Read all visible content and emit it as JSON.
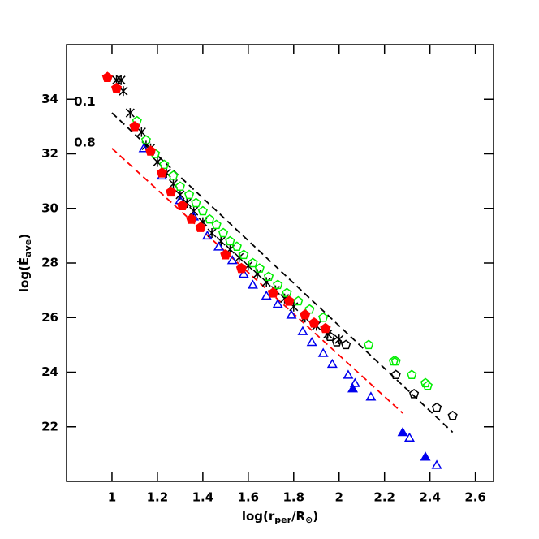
{
  "chart_data": {
    "type": "scatter",
    "x_label": [
      "log(r",
      "per",
      "/R",
      "⊙",
      ")"
    ],
    "y_label": [
      "log(Ė",
      "ave",
      ")"
    ],
    "xlim": [
      0.8,
      2.68
    ],
    "ylim": [
      20,
      36
    ],
    "xticks": [
      1,
      1.2,
      1.4,
      1.6,
      1.8,
      2,
      2.2,
      2.4,
      2.6
    ],
    "yticks": [
      22,
      24,
      26,
      28,
      30,
      32,
      34
    ],
    "annotations": [
      {
        "text": "0.1",
        "x": 0.88,
        "y": 33.9
      },
      {
        "text": "0.8",
        "x": 0.88,
        "y": 32.4
      }
    ],
    "lines": [
      {
        "color": "#000000",
        "dash": true,
        "x": [
          1.0,
          2.5
        ],
        "values": [
          33.5,
          21.8
        ]
      },
      {
        "color": "#ff0000",
        "dash": true,
        "x": [
          1.0,
          2.28
        ],
        "values": [
          32.2,
          22.5
        ]
      }
    ],
    "series": [
      {
        "marker": "cross",
        "color": "#000000",
        "filled": false,
        "x": [
          1.02,
          1.04,
          1.05,
          1.08,
          1.13,
          1.15,
          1.17,
          1.2,
          1.24,
          1.27,
          1.3,
          1.33,
          1.36,
          1.4,
          1.44,
          1.48,
          1.52,
          1.56,
          1.6,
          1.64,
          1.68,
          1.72,
          1.76,
          1.8,
          1.85,
          1.9,
          1.95,
          2.0
        ],
        "values": [
          34.7,
          34.7,
          34.3,
          33.5,
          32.8,
          32.3,
          32.2,
          31.7,
          31.3,
          30.9,
          30.5,
          30.2,
          29.9,
          29.5,
          29.1,
          28.8,
          28.5,
          28.2,
          27.9,
          27.6,
          27.3,
          27.0,
          26.7,
          26.4,
          26.0,
          25.7,
          25.4,
          25.2
        ]
      },
      {
        "marker": "pentagon",
        "color": "#000000",
        "filled": false,
        "x": [
          1.96,
          1.99,
          2.03,
          2.25,
          2.33,
          2.43,
          2.5
        ],
        "values": [
          25.3,
          25.1,
          25.0,
          23.9,
          23.2,
          22.7,
          22.4
        ]
      },
      {
        "marker": "pentagon",
        "color": "#00ee00",
        "filled": false,
        "x": [
          1.11,
          1.15,
          1.19,
          1.23,
          1.27,
          1.3,
          1.34,
          1.37,
          1.4,
          1.43,
          1.46,
          1.49,
          1.52,
          1.55,
          1.58,
          1.62,
          1.65,
          1.69,
          1.73,
          1.77,
          1.82,
          1.87,
          1.93,
          2.13,
          2.24,
          2.25,
          2.32,
          2.38,
          2.39
        ],
        "values": [
          33.2,
          32.5,
          32.0,
          31.6,
          31.2,
          30.8,
          30.5,
          30.2,
          29.9,
          29.6,
          29.4,
          29.1,
          28.8,
          28.6,
          28.3,
          28.0,
          27.8,
          27.5,
          27.2,
          26.9,
          26.6,
          26.3,
          26.0,
          25.0,
          24.4,
          24.4,
          23.9,
          23.6,
          23.5
        ]
      },
      {
        "marker": "triangle",
        "color": "#0000ee",
        "filled": false,
        "x": [
          1.14,
          1.22,
          1.3,
          1.36,
          1.42,
          1.47,
          1.53,
          1.58,
          1.62,
          1.68,
          1.73,
          1.79,
          1.84,
          1.88,
          1.93,
          1.97,
          2.04,
          2.07,
          2.14,
          2.31,
          2.43
        ],
        "values": [
          32.2,
          31.2,
          30.3,
          29.7,
          29.0,
          28.6,
          28.1,
          27.6,
          27.2,
          26.8,
          26.5,
          26.1,
          25.5,
          25.1,
          24.7,
          24.3,
          23.9,
          23.6,
          23.1,
          21.6,
          20.6
        ]
      },
      {
        "marker": "triangle",
        "color": "#0000ee",
        "filled": true,
        "x": [
          2.06,
          2.28,
          2.38
        ],
        "values": [
          23.4,
          21.8,
          20.9
        ]
      },
      {
        "marker": "pentagon",
        "color": "#ff0000",
        "filled": true,
        "x": [
          0.98,
          1.02,
          1.1,
          1.17,
          1.22,
          1.26,
          1.31,
          1.35,
          1.39,
          1.5,
          1.57,
          1.71,
          1.78,
          1.85,
          1.89,
          1.94
        ],
        "values": [
          34.8,
          34.4,
          33.0,
          32.1,
          31.3,
          30.6,
          30.1,
          29.6,
          29.3,
          28.3,
          27.8,
          26.9,
          26.6,
          26.1,
          25.8,
          25.6
        ]
      }
    ]
  }
}
